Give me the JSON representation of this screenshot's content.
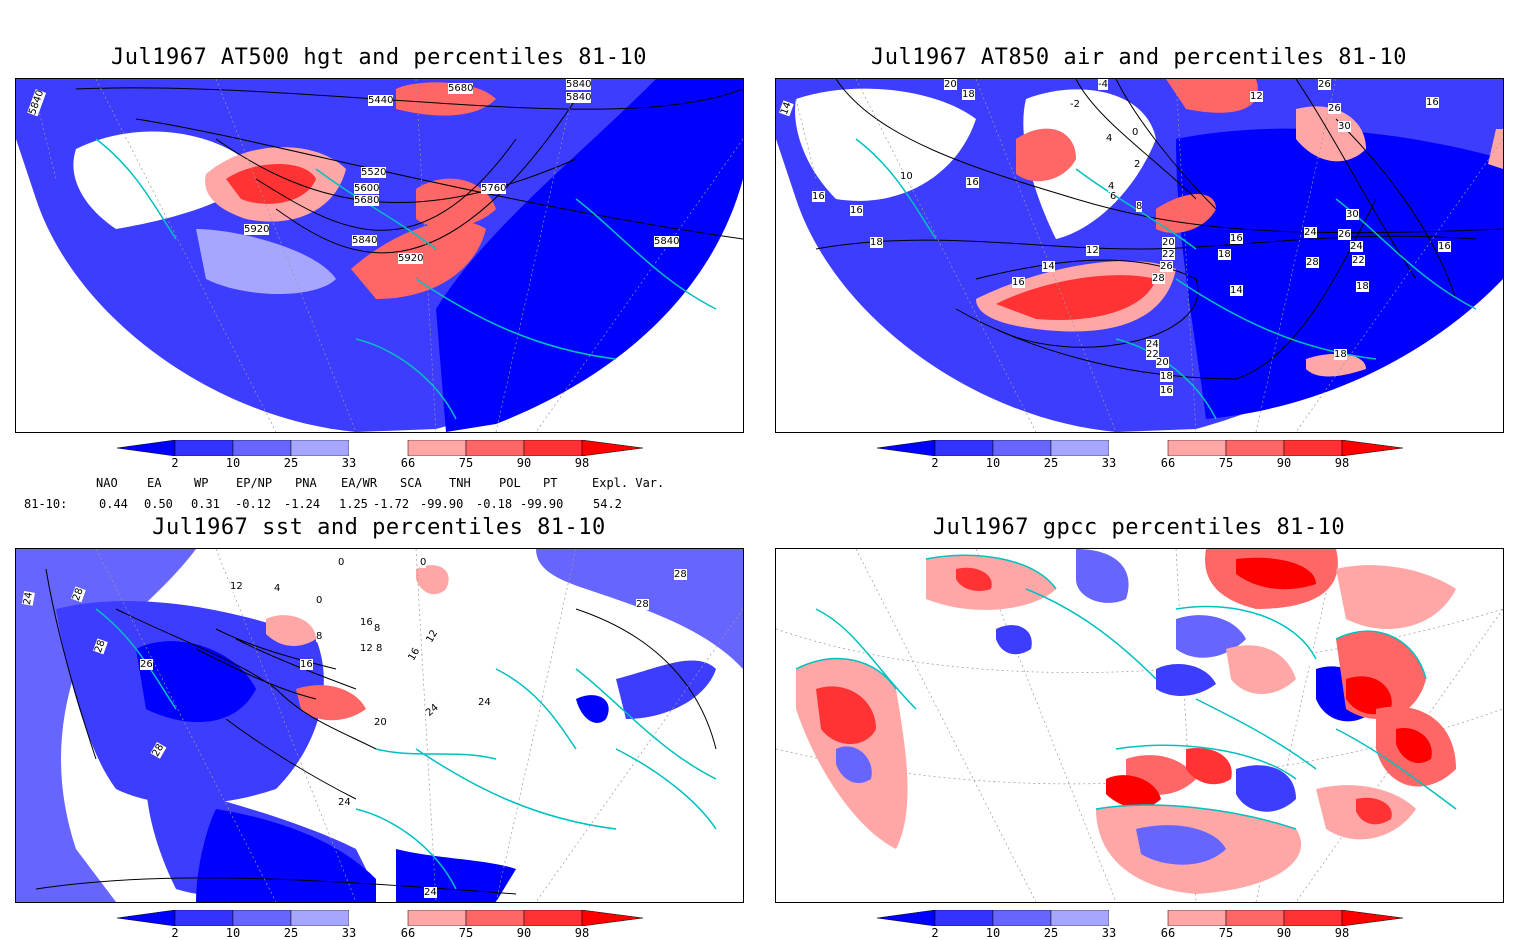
{
  "panels": [
    {
      "title": "Jul1967 AT500 hgt and percentiles 81-10",
      "labels": [
        "5840",
        "5440",
        "5680",
        "5840",
        "5840",
        "5520",
        "5600",
        "5680",
        "5760",
        "5920",
        "5840",
        "5920",
        "5840"
      ]
    },
    {
      "title": "Jul1967 AT850 air and percentiles 81-10",
      "labels": [
        "14",
        "20",
        "18",
        "-4",
        "-2",
        "12",
        "26",
        "16",
        "26",
        "30",
        "4",
        "0",
        "2",
        "4",
        "6",
        "8",
        "10",
        "16",
        "16",
        "18",
        "16",
        "14",
        "12",
        "16",
        "20",
        "22",
        "26",
        "28",
        "24",
        "22",
        "20",
        "18",
        "16",
        "14",
        "18",
        "24",
        "28",
        "26",
        "24",
        "22",
        "30",
        "16",
        "18",
        "18",
        "16"
      ]
    },
    {
      "title": "Jul1967 sst and percentiles 81-10",
      "labels": [
        "24",
        "28",
        "28",
        "12",
        "4",
        "0",
        "0",
        "0",
        "28",
        "26",
        "28",
        "16",
        "12",
        "8",
        "8",
        "8",
        "16",
        "16",
        "12",
        "20",
        "24",
        "24",
        "28",
        "24",
        "24"
      ]
    },
    {
      "title": "Jul1967 gpcc percentiles 81-10",
      "labels": []
    }
  ],
  "colorbar": {
    "ticks": [
      "2",
      "10",
      "25",
      "33",
      "66",
      "75",
      "90",
      "98"
    ],
    "colors": [
      "#0000ff",
      "#3333ff",
      "#6666ff",
      "#a6a6ff",
      "#ffffff",
      "#ffa6a6",
      "#ff6666",
      "#ff3333",
      "#ff0000"
    ]
  },
  "indices": {
    "headers": [
      "NAO",
      "EA",
      "WP",
      "EP/NP",
      "PNA",
      "EA/WR",
      "SCA",
      "TNH",
      "POL",
      "PT",
      "Expl. Var."
    ],
    "row_label": "81-10:",
    "values": [
      "0.44",
      "0.50",
      "0.31",
      "-0.12",
      "-1.24",
      "1.25",
      "-1.72",
      "-99.90",
      "-0.18",
      "-99.90",
      "54.2"
    ]
  },
  "chart_data": [
    {
      "type": "heatmap",
      "title": "Jul1967 AT500 hgt and percentiles 81-10",
      "colorbar_ticks": [
        2,
        10,
        25,
        33,
        66,
        75,
        90,
        98
      ],
      "contour_labels": [
        5440,
        5520,
        5600,
        5680,
        5760,
        5840,
        5920
      ]
    },
    {
      "type": "heatmap",
      "title": "Jul1967 AT850 air and percentiles 81-10",
      "colorbar_ticks": [
        2,
        10,
        25,
        33,
        66,
        75,
        90,
        98
      ],
      "contour_labels": [
        -4,
        -2,
        0,
        2,
        4,
        6,
        8,
        10,
        12,
        14,
        16,
        18,
        20,
        22,
        24,
        26,
        28,
        30
      ]
    },
    {
      "type": "heatmap",
      "title": "Jul1967 sst and percentiles 81-10",
      "colorbar_ticks": [
        2,
        10,
        25,
        33,
        66,
        75,
        90,
        98
      ],
      "contour_labels": [
        0,
        4,
        8,
        12,
        16,
        20,
        24,
        26,
        28
      ]
    },
    {
      "type": "heatmap",
      "title": "Jul1967 gpcc percentiles 81-10",
      "colorbar_ticks": [
        2,
        10,
        25,
        33,
        66,
        75,
        90,
        98
      ]
    }
  ]
}
